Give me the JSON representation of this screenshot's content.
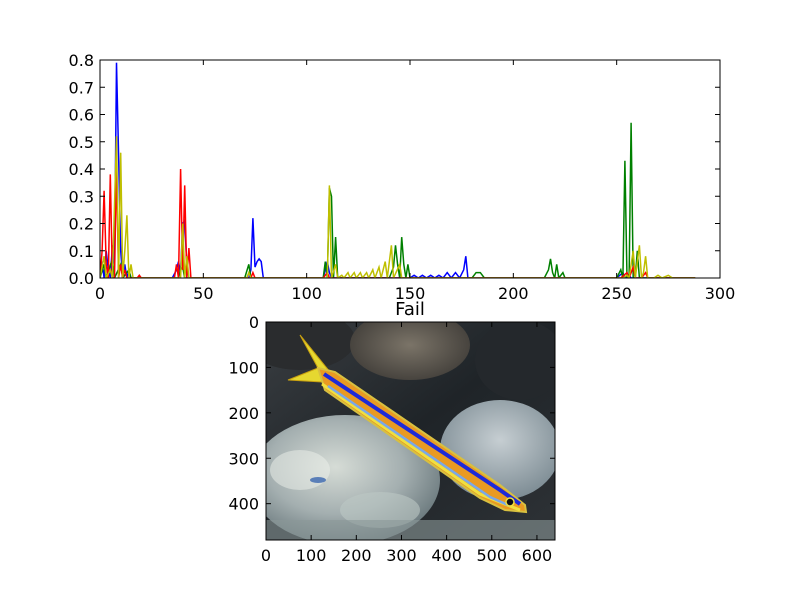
{
  "chart_data": [
    {
      "type": "line",
      "title": "",
      "xlabel": "",
      "ylabel": "",
      "xlim": [
        0,
        300
      ],
      "ylim": [
        0,
        0.8
      ],
      "x_ticks": [
        "0",
        "50",
        "100",
        "150",
        "200",
        "250",
        "300"
      ],
      "y_ticks": [
        "0.0",
        "0.1",
        "0.2",
        "0.3",
        "0.4",
        "0.5",
        "0.6",
        "0.7",
        "0.8"
      ],
      "grid": false,
      "legend": "none",
      "series": [
        {
          "color": "#0000ff",
          "points": [
            [
              0,
              0.02
            ],
            [
              1,
              0.06
            ],
            [
              2,
              0.0
            ],
            [
              3,
              0.1
            ],
            [
              4,
              0.03
            ],
            [
              5,
              0.0
            ],
            [
              6,
              0.12
            ],
            [
              7,
              0.05
            ],
            [
              8,
              0.79
            ],
            [
              9,
              0.45
            ],
            [
              10,
              0.1
            ],
            [
              11,
              0.0
            ],
            [
              12,
              0.05
            ],
            [
              13,
              0.0
            ],
            [
              14,
              0.03
            ],
            [
              15,
              0.0
            ],
            [
              17,
              0.0
            ],
            [
              20,
              0.0
            ],
            [
              35,
              0.0
            ],
            [
              37,
              0.03
            ],
            [
              38,
              0.06
            ],
            [
              39,
              0.02
            ],
            [
              40,
              0.2
            ],
            [
              41,
              0.21
            ],
            [
              42,
              0.05
            ],
            [
              43,
              0.0
            ],
            [
              45,
              0.0
            ],
            [
              70,
              0.0
            ],
            [
              72,
              0.0
            ],
            [
              73,
              0.03
            ],
            [
              74,
              0.22
            ],
            [
              75,
              0.04
            ],
            [
              76,
              0.06
            ],
            [
              77,
              0.07
            ],
            [
              78,
              0.06
            ],
            [
              79,
              0.0
            ],
            [
              108,
              0.0
            ],
            [
              109,
              0.03
            ],
            [
              110,
              0.06
            ],
            [
              111,
              0.02
            ],
            [
              112,
              0.0
            ],
            [
              140,
              0.0
            ],
            [
              150,
              0.0
            ],
            [
              152,
              0.01
            ],
            [
              154,
              0.0
            ],
            [
              156,
              0.01
            ],
            [
              158,
              0.0
            ],
            [
              160,
              0.01
            ],
            [
              162,
              0.0
            ],
            [
              164,
              0.01
            ],
            [
              166,
              0.0
            ],
            [
              168,
              0.02
            ],
            [
              170,
              0.0
            ],
            [
              172,
              0.02
            ],
            [
              174,
              0.0
            ],
            [
              176,
              0.03
            ],
            [
              177,
              0.08
            ],
            [
              178,
              0.0
            ],
            [
              200,
              0.0
            ],
            [
              250,
              0.0
            ],
            [
              253,
              0.02
            ],
            [
              254,
              0.0
            ],
            [
              256,
              0.01
            ],
            [
              257,
              0.0
            ],
            [
              288,
              0.0
            ]
          ]
        },
        {
          "color": "#008000",
          "points": [
            [
              0,
              0.0
            ],
            [
              2,
              0.05
            ],
            [
              3,
              0.0
            ],
            [
              6,
              0.07
            ],
            [
              7,
              0.0
            ],
            [
              10,
              0.05
            ],
            [
              11,
              0.0
            ],
            [
              14,
              0.03
            ],
            [
              15,
              0.0
            ],
            [
              38,
              0.0
            ],
            [
              39,
              0.03
            ],
            [
              40,
              0.04
            ],
            [
              41,
              0.0
            ],
            [
              70,
              0.0
            ],
            [
              72,
              0.05
            ],
            [
              73,
              0.0
            ],
            [
              108,
              0.0
            ],
            [
              109,
              0.06
            ],
            [
              110,
              0.0
            ],
            [
              111,
              0.33
            ],
            [
              112,
              0.3
            ],
            [
              113,
              0.0
            ],
            [
              114,
              0.15
            ],
            [
              115,
              0.0
            ],
            [
              140,
              0.0
            ],
            [
              142,
              0.04
            ],
            [
              143,
              0.12
            ],
            [
              144,
              0.05
            ],
            [
              145,
              0.0
            ],
            [
              146,
              0.15
            ],
            [
              147,
              0.05
            ],
            [
              148,
              0.0
            ],
            [
              149,
              0.05
            ],
            [
              150,
              0.0
            ],
            [
              180,
              0.0
            ],
            [
              182,
              0.02
            ],
            [
              184,
              0.02
            ],
            [
              186,
              0.0
            ],
            [
              215,
              0.0
            ],
            [
              217,
              0.03
            ],
            [
              218,
              0.07
            ],
            [
              219,
              0.02
            ],
            [
              220,
              0.0
            ],
            [
              221,
              0.05
            ],
            [
              222,
              0.0
            ],
            [
              224,
              0.02
            ],
            [
              225,
              0.0
            ],
            [
              250,
              0.0
            ],
            [
              252,
              0.03
            ],
            [
              253,
              0.0
            ],
            [
              254,
              0.43
            ],
            [
              255,
              0.0
            ],
            [
              256,
              0.0
            ],
            [
              257,
              0.57
            ],
            [
              258,
              0.0
            ],
            [
              259,
              0.0
            ],
            [
              260,
              0.1
            ],
            [
              261,
              0.0
            ],
            [
              288,
              0.0
            ]
          ]
        },
        {
          "color": "#ff0000",
          "points": [
            [
              0,
              0.0
            ],
            [
              1,
              0.1
            ],
            [
              2,
              0.32
            ],
            [
              3,
              0.05
            ],
            [
              4,
              0.0
            ],
            [
              5,
              0.38
            ],
            [
              6,
              0.0
            ],
            [
              7,
              0.0
            ],
            [
              8,
              0.41
            ],
            [
              9,
              0.0
            ],
            [
              10,
              0.05
            ],
            [
              11,
              0.0
            ],
            [
              12,
              0.03
            ],
            [
              13,
              0.0
            ],
            [
              18,
              0.0
            ],
            [
              19,
              0.01
            ],
            [
              20,
              0.0
            ],
            [
              36,
              0.0
            ],
            [
              37,
              0.05
            ],
            [
              38,
              0.0
            ],
            [
              39,
              0.4
            ],
            [
              40,
              0.03
            ],
            [
              41,
              0.34
            ],
            [
              42,
              0.0
            ],
            [
              43,
              0.11
            ],
            [
              44,
              0.0
            ],
            [
              45,
              0.0
            ],
            [
              70,
              0.0
            ],
            [
              73,
              0.0
            ],
            [
              74,
              0.02
            ],
            [
              75,
              0.0
            ],
            [
              108,
              0.0
            ],
            [
              110,
              0.02
            ],
            [
              111,
              0.0
            ],
            [
              252,
              0.0
            ],
            [
              255,
              0.02
            ],
            [
              256,
              0.0
            ],
            [
              258,
              0.04
            ],
            [
              259,
              0.0
            ],
            [
              262,
              0.0
            ],
            [
              264,
              0.02
            ],
            [
              265,
              0.0
            ],
            [
              288,
              0.0
            ]
          ]
        },
        {
          "color": "#bfbf00",
          "points": [
            [
              0,
              0.0
            ],
            [
              2,
              0.08
            ],
            [
              3,
              0.0
            ],
            [
              5,
              0.03
            ],
            [
              6,
              0.0
            ],
            [
              8,
              0.52
            ],
            [
              9,
              0.0
            ],
            [
              10,
              0.46
            ],
            [
              11,
              0.0
            ],
            [
              12,
              0.1
            ],
            [
              13,
              0.23
            ],
            [
              14,
              0.0
            ],
            [
              15,
              0.05
            ],
            [
              16,
              0.0
            ],
            [
              39,
              0.0
            ],
            [
              40,
              0.2
            ],
            [
              41,
              0.0
            ],
            [
              42,
              0.08
            ],
            [
              43,
              0.0
            ],
            [
              71,
              0.0
            ],
            [
              72,
              0.02
            ],
            [
              73,
              0.0
            ],
            [
              110,
              0.0
            ],
            [
              111,
              0.34
            ],
            [
              112,
              0.0
            ],
            [
              114,
              0.05
            ],
            [
              115,
              0.0
            ],
            [
              117,
              0.01
            ],
            [
              118,
              0.0
            ],
            [
              120,
              0.02
            ],
            [
              121,
              0.0
            ],
            [
              123,
              0.02
            ],
            [
              124,
              0.0
            ],
            [
              126,
              0.02
            ],
            [
              127,
              0.0
            ],
            [
              129,
              0.02
            ],
            [
              130,
              0.0
            ],
            [
              132,
              0.03
            ],
            [
              133,
              0.0
            ],
            [
              135,
              0.04
            ],
            [
              136,
              0.0
            ],
            [
              138,
              0.06
            ],
            [
              139,
              0.0
            ],
            [
              141,
              0.12
            ],
            [
              142,
              0.0
            ],
            [
              145,
              0.05
            ],
            [
              146,
              0.0
            ],
            [
              253,
              0.0
            ],
            [
              255,
              0.01
            ],
            [
              256,
              0.0
            ],
            [
              258,
              0.1
            ],
            [
              259,
              0.0
            ],
            [
              261,
              0.12
            ],
            [
              262,
              0.0
            ],
            [
              263,
              0.02
            ],
            [
              264,
              0.08
            ],
            [
              265,
              0.0
            ],
            [
              268,
              0.0
            ],
            [
              270,
              0.01
            ],
            [
              272,
              0.0
            ],
            [
              275,
              0.01
            ],
            [
              277,
              0.0
            ],
            [
              288,
              0.0
            ]
          ]
        }
      ]
    },
    {
      "type": "image",
      "title": "Fail",
      "xlim": [
        0,
        640
      ],
      "ylim": [
        480,
        0
      ],
      "x_ticks": [
        "0",
        "100",
        "200",
        "300",
        "400",
        "500",
        "600"
      ],
      "y_ticks": [
        "0",
        "100",
        "200",
        "300",
        "400"
      ],
      "content": "photo of a yellow and blue striped fish over grey rocks"
    }
  ]
}
